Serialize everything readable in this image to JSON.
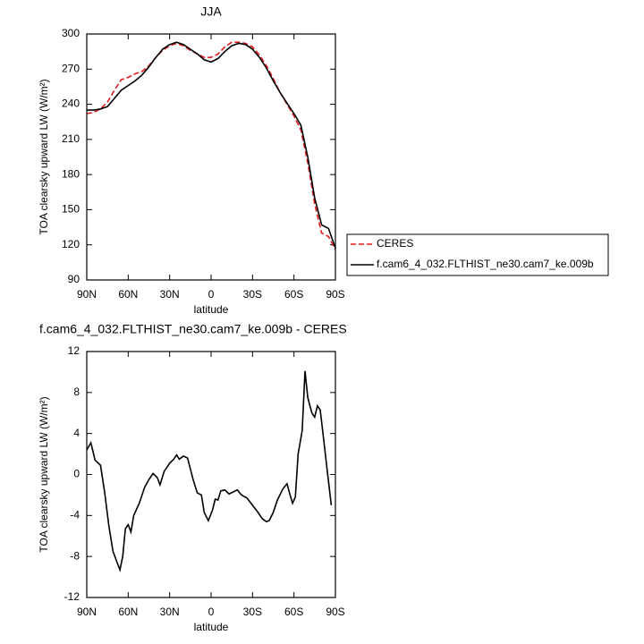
{
  "chart_data": [
    {
      "type": "line",
      "title": "JJA",
      "xlabel": "latitude",
      "ylabel": "TOA clearsky upward LW (W/m²)",
      "x": [
        90,
        85,
        80,
        75,
        70,
        65,
        60,
        55,
        50,
        45,
        40,
        35,
        30,
        25,
        20,
        15,
        10,
        5,
        0,
        -5,
        -10,
        -15,
        -20,
        -25,
        -30,
        -35,
        -40,
        -45,
        -50,
        -55,
        -60,
        -65,
        -70,
        -75,
        -80,
        -85,
        -90
      ],
      "series": [
        {
          "name": "CERES",
          "color": "#e41a1c",
          "dash": true,
          "values": [
            232,
            233,
            236,
            242,
            252,
            261,
            263,
            266,
            268,
            273,
            280,
            286,
            290,
            292,
            290,
            286,
            283,
            280,
            280,
            283,
            289,
            293,
            293,
            292,
            289,
            282,
            273,
            262,
            250,
            240,
            230,
            218,
            190,
            155,
            130,
            127,
            116
          ]
        },
        {
          "name": "f.cam6_4_032.FLTHIST_ne30.cam7_ke.009b",
          "color": "#000000",
          "dash": false,
          "values": [
            235,
            235,
            236,
            238,
            245,
            252,
            256,
            260,
            265,
            272,
            280,
            287,
            291,
            293,
            291,
            287,
            283,
            278,
            276,
            279,
            285,
            290,
            292,
            291,
            287,
            280,
            271,
            260,
            250,
            241,
            232,
            222,
            195,
            160,
            137,
            134,
            117
          ]
        }
      ],
      "xlim": [
        90,
        -90
      ],
      "xticks": [
        {
          "value": 90,
          "label": "90N"
        },
        {
          "value": 60,
          "label": "60N"
        },
        {
          "value": 30,
          "label": "30N"
        },
        0,
        {
          "value": -30,
          "label": "30S"
        },
        {
          "value": -60,
          "label": "60S"
        },
        {
          "value": -90,
          "label": "90S"
        }
      ],
      "ylim": [
        90,
        300
      ],
      "yticks": [
        90,
        120,
        150,
        180,
        210,
        240,
        270,
        300
      ]
    },
    {
      "type": "line",
      "title": "f.cam6_4_032.FLTHIST_ne30.cam7_ke.009b - CERES",
      "xlabel": "latitude",
      "ylabel": "TOA clearsky upward LW (W/m²)",
      "x": [
        90,
        87,
        84,
        80,
        77,
        74,
        71,
        68,
        66,
        64,
        62,
        60,
        58,
        56,
        52,
        48,
        45,
        42,
        39,
        37,
        34,
        30,
        27,
        25,
        23,
        20,
        17,
        13,
        10,
        7,
        5,
        2,
        -1,
        -3,
        -5,
        -7,
        -10,
        -13,
        -16,
        -19,
        -22,
        -26,
        -30,
        -34,
        -37,
        -40,
        -42,
        -45,
        -48,
        -52,
        -55,
        -57,
        -59,
        -61,
        -63,
        -66,
        -68,
        -70,
        -73,
        -75,
        -77,
        -79,
        -81,
        -84,
        -87
      ],
      "values": [
        2.4,
        3.1,
        1.4,
        0.9,
        -1.8,
        -5,
        -7.5,
        -8.6,
        -9.3,
        -8,
        -5.3,
        -4.9,
        -5.6,
        -4.0,
        -2.8,
        -1.2,
        -0.5,
        0.1,
        -0.3,
        -1.0,
        0.3,
        1.1,
        1.5,
        1.9,
        1.5,
        1.8,
        1.6,
        -0.5,
        -1.8,
        -2,
        -3.7,
        -4.5,
        -3.5,
        -2.4,
        -2.5,
        -1.6,
        -1.5,
        -1.9,
        -1.7,
        -1.5,
        -2.0,
        -2.3,
        -3.0,
        -3.7,
        -4.3,
        -4.6,
        -4.5,
        -3.7,
        -2.5,
        -1.4,
        -0.9,
        -1.9,
        -2.8,
        -2.2,
        2.0,
        4.3,
        10.1,
        7.5,
        6.0,
        5.6,
        6.7,
        6.3,
        4.0,
        0.5,
        -3.0
      ],
      "color": "#000000",
      "xlim": [
        90,
        -90
      ],
      "xticks": [
        {
          "value": 90,
          "label": "90N"
        },
        {
          "value": 60,
          "label": "60N"
        },
        {
          "value": 30,
          "label": "30N"
        },
        0,
        {
          "value": -30,
          "label": "30S"
        },
        {
          "value": -60,
          "label": "60S"
        },
        {
          "value": -90,
          "label": "90S"
        }
      ],
      "ylim": [
        -12,
        12
      ],
      "yticks": [
        -12,
        -8,
        -4,
        0,
        4,
        8,
        12
      ]
    }
  ]
}
